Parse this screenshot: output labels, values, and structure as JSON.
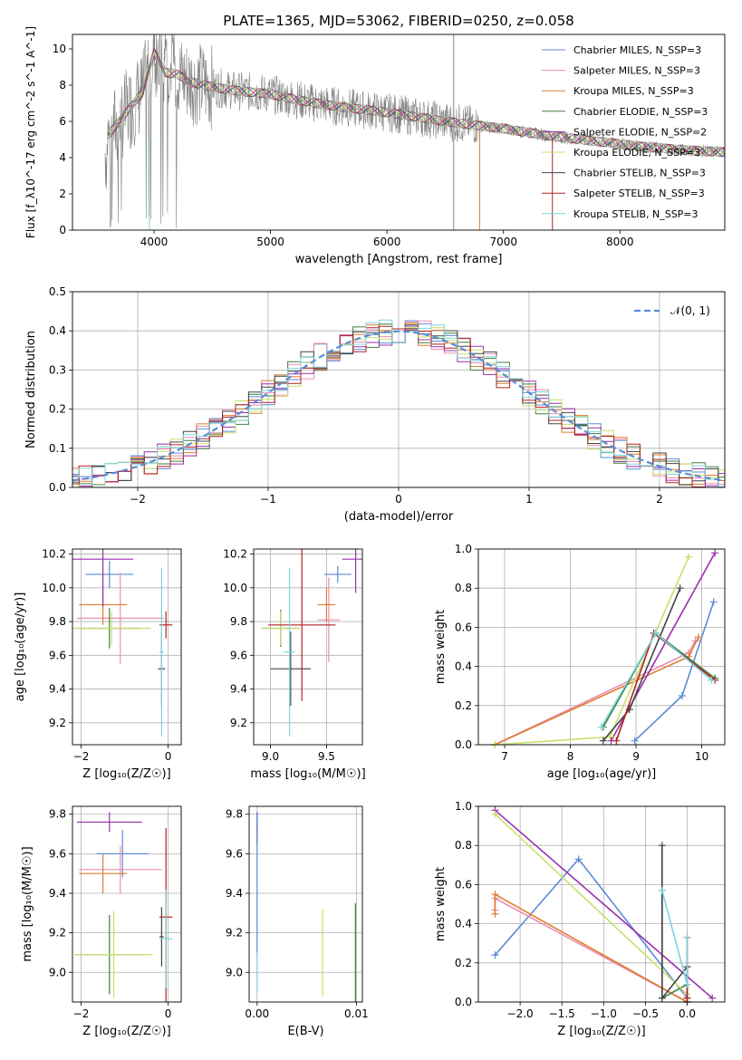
{
  "title": "PLATE=1365, MJD=53062, FIBERID=0250, z=0.058",
  "colors": {
    "chabrier_miles": "#5b8bd6",
    "salpeter_miles": "#e98fb3",
    "kroupa_miles": "#e07b2e",
    "chabrier_elodie": "#3f7f3f",
    "salpeter_elodie": "#9b2fae",
    "kroupa_elodie": "#c8e06a",
    "chabrier_stelib": "#444444",
    "salpeter_stelib": "#b22222",
    "kroupa_stelib": "#7fd3dc",
    "data": "#808080"
  },
  "chart_data": [
    {
      "id": "spectrum",
      "type": "line",
      "xlabel": "wavelength [Angstrom, rest frame]",
      "ylabel": "Flux [f_λ10^-17 erg cm^-2 s^-1 A^-1]",
      "xlim": [
        3300,
        8900
      ],
      "ylim": [
        0,
        10.8
      ],
      "xticks": [
        "4000",
        "5000",
        "6000",
        "7000",
        "8000"
      ],
      "yticks": [
        "0",
        "2",
        "4",
        "6",
        "8",
        "10"
      ],
      "legend_position": "top-right",
      "legend": [
        "Chabrier MILES, N_SSP=3",
        "Salpeter MILES, N_SSP=3",
        "Kroupa MILES, N_SSP=3",
        "Chabrier ELODIE, N_SSP=3",
        "Salpeter ELODIE, N_SSP=2",
        "Kroupa ELODIE, N_SSP=3",
        "Chabrier STELIB, N_SSP=3",
        "Salpeter STELIB, N_SSP=3",
        "Kroupa STELIB, N_SSP=3"
      ],
      "continuum": {
        "x": [
          3600,
          3700,
          3800,
          3900,
          4000,
          4100,
          4200,
          4300,
          4500,
          4700,
          5000,
          5300,
          5600,
          6000,
          6500,
          7000,
          7400,
          7800,
          8200,
          8600,
          8900
        ],
        "y": [
          5.2,
          6.0,
          6.8,
          7.6,
          9.8,
          8.7,
          8.6,
          8.2,
          7.9,
          7.7,
          7.5,
          7.1,
          6.8,
          6.5,
          6.0,
          5.6,
          5.2,
          4.9,
          4.6,
          4.4,
          4.3
        ]
      }
    },
    {
      "id": "residuals",
      "type": "histogram",
      "xlabel": "(data-model)/error",
      "ylabel": "Normed distribution",
      "xlim": [
        -2.5,
        2.5
      ],
      "ylim": [
        0,
        0.5
      ],
      "xticks": [
        "−2",
        "−1",
        "0",
        "1",
        "2"
      ],
      "yticks": [
        "0.0",
        "0.1",
        "0.2",
        "0.3",
        "0.4",
        "0.5"
      ],
      "legend_position": "top-right",
      "legend": [
        "𝒩(0, 1)"
      ],
      "grid": true
    },
    {
      "id": "age_vs_Z",
      "type": "scatter",
      "xlabel": "Z [log₁₀(Z/Z☉)]",
      "ylabel": "age [log₁₀(age/yr)]",
      "xlim": [
        -2.2,
        0.3
      ],
      "ylim": [
        9.07,
        10.23
      ],
      "xticks": [
        "−2",
        "0"
      ],
      "yticks": [
        "9.2",
        "9.4",
        "9.6",
        "9.8",
        "10.0",
        "10.2"
      ],
      "grid": true,
      "points": [
        {
          "model": "chabrier_miles",
          "x": -1.35,
          "y": 10.08,
          "xerr": 0.55,
          "yerr": 0.08
        },
        {
          "model": "salpeter_miles",
          "x": -1.1,
          "y": 9.82,
          "xerr": 1.0,
          "yerr": 0.27
        },
        {
          "model": "kroupa_miles",
          "x": -1.5,
          "y": 9.9,
          "xerr": 0.55,
          "yerr": 0.12
        },
        {
          "model": "chabrier_elodie",
          "x": -1.35,
          "y": 9.76,
          "xerr": 0.75,
          "yerr": 0.12
        },
        {
          "model": "salpeter_elodie",
          "x": -1.5,
          "y": 10.17,
          "xerr": 0.7,
          "yerr": 0.28
        },
        {
          "model": "kroupa_elodie",
          "x": -1.3,
          "y": 9.76,
          "xerr": 0.9,
          "yerr": 0.1
        },
        {
          "model": "chabrier_stelib",
          "x": -0.15,
          "y": 9.52,
          "xerr": 0.08,
          "yerr": 0.22
        },
        {
          "model": "salpeter_stelib",
          "x": -0.05,
          "y": 9.78,
          "xerr": 0.15,
          "yerr": 0.08
        },
        {
          "model": "kroupa_stelib",
          "x": -0.15,
          "y": 9.62,
          "xerr": 0.05,
          "yerr": 0.5
        }
      ]
    },
    {
      "id": "age_vs_mass",
      "type": "scatter",
      "xlabel": "mass [log₁₀(M/M☉)]",
      "xlim": [
        8.85,
        9.82
      ],
      "ylim": [
        9.07,
        10.23
      ],
      "xticks": [
        "9.0",
        "9.5"
      ],
      "yticks": [
        "9.2",
        "9.4",
        "9.6",
        "9.8",
        "10.0",
        "10.2"
      ],
      "grid": true,
      "points": [
        {
          "model": "chabrier_miles",
          "x": 9.6,
          "y": 10.08,
          "xerr": 0.12,
          "yerr": 0.05
        },
        {
          "model": "salpeter_miles",
          "x": 9.52,
          "y": 9.81,
          "xerr": 0.1,
          "yerr": 0.25
        },
        {
          "model": "kroupa_miles",
          "x": 9.5,
          "y": 9.9,
          "xerr": 0.08,
          "yerr": 0.1
        },
        {
          "model": "chabrier_elodie",
          "x": 9.09,
          "y": 9.76,
          "xerr": 0.17,
          "yerr": 0.11
        },
        {
          "model": "salpeter_elodie",
          "x": 9.76,
          "y": 10.17,
          "xerr": 0.12,
          "yerr": 0.2
        },
        {
          "model": "kroupa_elodie",
          "x": 9.09,
          "y": 9.76,
          "xerr": 0.17,
          "yerr": 0.1
        },
        {
          "model": "chabrier_stelib",
          "x": 9.18,
          "y": 9.52,
          "xerr": 0.18,
          "yerr": 0.22
        },
        {
          "model": "salpeter_stelib",
          "x": 9.28,
          "y": 9.78,
          "xerr": 0.3,
          "yerr": 0.45
        },
        {
          "model": "kroupa_stelib",
          "x": 9.17,
          "y": 9.62,
          "xerr": 0.05,
          "yerr": 0.5
        }
      ]
    },
    {
      "id": "weight_vs_age",
      "type": "line",
      "xlabel": "age [log₁₀(age/yr)]",
      "ylabel": "mass weight",
      "xlim": [
        6.6,
        10.35
      ],
      "ylim": [
        0,
        1.0
      ],
      "xticks": [
        "7",
        "8",
        "9",
        "10"
      ],
      "yticks": [
        "0.0",
        "0.2",
        "0.4",
        "0.6",
        "0.8",
        "1.0"
      ],
      "grid": true,
      "series": [
        {
          "model": "chabrier_miles",
          "x": [
            8.98,
            9.7,
            10.18
          ],
          "y": [
            0.02,
            0.25,
            0.73
          ]
        },
        {
          "model": "salpeter_miles",
          "x": [
            6.85,
            9.8,
            9.9
          ],
          "y": [
            0.0,
            0.47,
            0.53
          ]
        },
        {
          "model": "kroupa_miles",
          "x": [
            6.85,
            9.8,
            9.95
          ],
          "y": [
            0.0,
            0.45,
            0.55
          ]
        },
        {
          "model": "chabrier_elodie",
          "x": [
            8.5,
            9.3,
            10.2
          ],
          "y": [
            0.09,
            0.57,
            0.34
          ]
        },
        {
          "model": "salpeter_elodie",
          "x": [
            8.62,
            10.2
          ],
          "y": [
            0.02,
            0.98
          ]
        },
        {
          "model": "kroupa_elodie",
          "x": [
            6.85,
            8.6,
            9.8
          ],
          "y": [
            0.0,
            0.04,
            0.96
          ]
        },
        {
          "model": "chabrier_stelib",
          "x": [
            8.5,
            8.9,
            9.67
          ],
          "y": [
            0.02,
            0.18,
            0.8
          ]
        },
        {
          "model": "salpeter_stelib",
          "x": [
            8.7,
            9.27,
            10.2
          ],
          "y": [
            0.02,
            0.57,
            0.33
          ]
        },
        {
          "model": "kroupa_stelib",
          "x": [
            8.47,
            9.3,
            10.15
          ],
          "y": [
            0.09,
            0.57,
            0.33
          ]
        }
      ]
    },
    {
      "id": "mass_vs_Z",
      "type": "scatter",
      "xlabel": "Z [log₁₀(Z/Z☉)]",
      "ylabel": "mass [log₁₀(M/M☉)]",
      "xlim": [
        -2.2,
        0.3
      ],
      "ylim": [
        8.85,
        9.84
      ],
      "xticks": [
        "−2",
        "0"
      ],
      "yticks": [
        "9.0",
        "9.2",
        "9.4",
        "9.6",
        "9.8"
      ],
      "grid": true,
      "points": [
        {
          "model": "chabrier_miles",
          "x": -1.05,
          "y": 9.6,
          "xerr": 0.6,
          "yerr": 0.12
        },
        {
          "model": "salpeter_miles",
          "x": -1.1,
          "y": 9.52,
          "xerr": 0.95,
          "yerr": 0.12
        },
        {
          "model": "kroupa_miles",
          "x": -1.5,
          "y": 9.5,
          "xerr": 0.55,
          "yerr": 0.1
        },
        {
          "model": "chabrier_elodie",
          "x": -1.35,
          "y": 9.09,
          "xerr": 0.8,
          "yerr": 0.2
        },
        {
          "model": "salpeter_elodie",
          "x": -1.35,
          "y": 9.76,
          "xerr": 0.75,
          "yerr": 0.05
        },
        {
          "model": "kroupa_elodie",
          "x": -1.25,
          "y": 9.09,
          "xerr": 0.9,
          "yerr": 0.22
        },
        {
          "model": "chabrier_stelib",
          "x": -0.15,
          "y": 9.18,
          "xerr": 0.05,
          "yerr": 0.15
        },
        {
          "model": "salpeter_stelib",
          "x": -0.05,
          "y": 9.28,
          "xerr": 0.15,
          "yerr": 0.45
        },
        {
          "model": "kroupa_stelib",
          "x": -0.05,
          "y": 9.17,
          "xerr": 0.15,
          "yerr": 0.25
        }
      ]
    },
    {
      "id": "mass_vs_ebv",
      "type": "scatter",
      "xlabel": "E(B-V)",
      "xlim": [
        -0.0008,
        0.0106
      ],
      "ylim": [
        8.85,
        9.84
      ],
      "xticks": [
        "0.00",
        "0.01"
      ],
      "yticks": [
        "9.0",
        "9.2",
        "9.4",
        "9.6",
        "9.8"
      ],
      "grid": true,
      "points": [
        {
          "model": "salpeter_elodie",
          "x": 0.0,
          "y": 9.76,
          "yerr": 0.05
        },
        {
          "model": "salpeter_stelib",
          "x": 0.0,
          "y": 9.7,
          "yerr": 0.05
        },
        {
          "model": "chabrier_miles",
          "x": 0.0,
          "y": 9.45,
          "yerr": 0.35
        },
        {
          "model": "kroupa_elodie",
          "x": 0.0066,
          "y": 9.1,
          "yerr": 0.22
        },
        {
          "model": "chabrier_elodie",
          "x": 0.0099,
          "y": 9.1,
          "yerr": 0.25
        },
        {
          "model": "kroupa_stelib",
          "x": 0.0,
          "y": 9.0,
          "yerr": 0.1
        }
      ]
    },
    {
      "id": "weight_vs_Z",
      "type": "line",
      "xlabel": "Z [log₁₀(Z/Z☉)]",
      "ylabel": "mass weight",
      "xlim": [
        -2.5,
        0.45
      ],
      "ylim": [
        0,
        1.0
      ],
      "xticks": [
        "−2.0",
        "−1.5",
        "−1.0",
        "−0.5",
        "0.0"
      ],
      "yticks": [
        "0.0",
        "0.2",
        "0.4",
        "0.6",
        "0.8",
        "1.0"
      ],
      "grid": true,
      "series": [
        {
          "model": "chabrier_miles",
          "x": [
            -2.3,
            -1.3,
            0.0
          ],
          "y": [
            0.24,
            0.73,
            0.02
          ]
        },
        {
          "model": "salpeter_miles",
          "x": [
            -2.3,
            -2.3,
            0.0
          ],
          "y": [
            0.47,
            0.53,
            0.0
          ]
        },
        {
          "model": "kroupa_miles",
          "x": [
            -2.3,
            -2.3,
            0.0
          ],
          "y": [
            0.45,
            0.55,
            0.0
          ]
        },
        {
          "model": "chabrier_elodie",
          "x": [
            -0.3,
            -0.3,
            0.0
          ],
          "y": [
            0.57,
            0.02,
            0.09
          ]
        },
        {
          "model": "salpeter_elodie",
          "x": [
            -2.3,
            0.3
          ],
          "y": [
            0.98,
            0.02
          ]
        },
        {
          "model": "kroupa_elodie",
          "x": [
            -2.3,
            0.0
          ],
          "y": [
            0.96,
            0.04
          ]
        },
        {
          "model": "chabrier_stelib",
          "x": [
            -0.3,
            -0.3,
            0.0,
            0.0
          ],
          "y": [
            0.8,
            0.02,
            0.18,
            0.0
          ]
        },
        {
          "model": "salpeter_stelib",
          "x": [
            0.0,
            0.0
          ],
          "y": [
            0.33,
            0.02
          ]
        },
        {
          "model": "kroupa_stelib",
          "x": [
            0.0,
            0.0,
            -0.3
          ],
          "y": [
            0.33,
            0.09,
            0.57
          ]
        }
      ]
    }
  ]
}
